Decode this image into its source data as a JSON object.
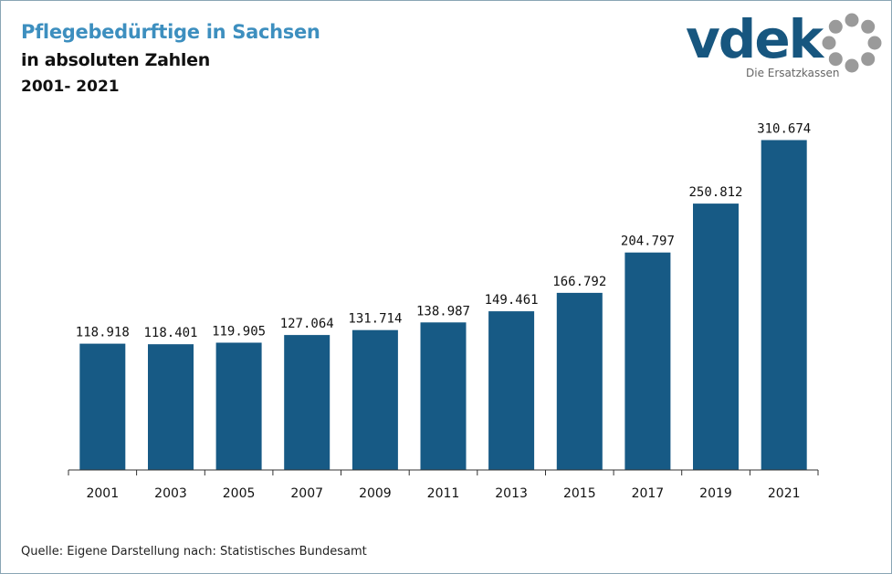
{
  "header": {
    "title": "Pflegebedürftige in Sachsen",
    "subtitle": "in absoluten Zahlen",
    "period": "2001- 2021"
  },
  "logo": {
    "word": "vdek",
    "tagline": "Die Ersatzkassen",
    "icon": "ring-of-dots-icon",
    "colors": {
      "word": "#17567f",
      "dots": "#9a9a9a"
    }
  },
  "source": "Quelle: Eigene Darstellung nach: Statistisches Bundesamt",
  "chart_data": {
    "type": "bar",
    "categories": [
      "2001",
      "2003",
      "2005",
      "2007",
      "2009",
      "2011",
      "2013",
      "2015",
      "2017",
      "2019",
      "2021"
    ],
    "values": [
      118918,
      118401,
      119905,
      127064,
      131714,
      138987,
      149461,
      166792,
      204797,
      250812,
      310674
    ],
    "value_labels": [
      "118.918",
      "118.401",
      "119.905",
      "127.064",
      "131.714",
      "138.987",
      "149.461",
      "166.792",
      "204.797",
      "250.812",
      "310.674"
    ],
    "ylim": [
      0,
      330000
    ],
    "grid": false,
    "legend": "none",
    "bar_color": "#175a85"
  }
}
